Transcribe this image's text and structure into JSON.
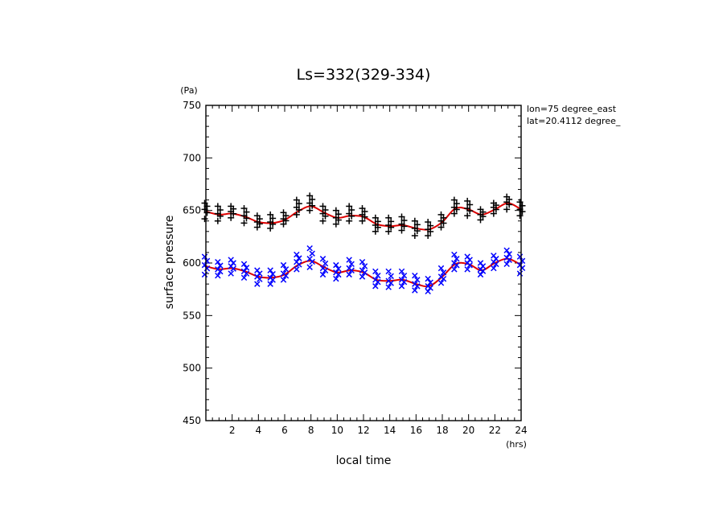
{
  "chart_data": {
    "type": "scatter",
    "title": "Ls=332(329-334)",
    "xlabel": "local time",
    "xunit": "(hrs)",
    "ylabel": "surface pressure",
    "yunit": "(Pa)",
    "xlim": [
      0,
      24
    ],
    "ylim": [
      450,
      750
    ],
    "xticks": [
      2,
      4,
      6,
      8,
      10,
      12,
      14,
      16,
      18,
      20,
      22,
      24
    ],
    "yticks": [
      450,
      500,
      550,
      600,
      650,
      700,
      750
    ],
    "annotations": [
      "lon=75 degree_east",
      "lat=20.4112 degree_"
    ],
    "colors": {
      "upper_markers": "#000000",
      "lower_markers": "#0000ff",
      "fit": "#dd0000",
      "frame": "#000000"
    },
    "series": [
      {
        "marker": "plus",
        "x": [
          0,
          1,
          2,
          3,
          4,
          5,
          6,
          7,
          8,
          9,
          10,
          11,
          12,
          13,
          14,
          15,
          16,
          17,
          18,
          19,
          20,
          21,
          22,
          23,
          24
        ],
        "values": [
          651,
          647,
          649,
          645,
          639,
          639,
          642,
          653,
          657,
          647,
          643,
          647,
          646,
          636,
          636,
          637,
          633,
          632,
          640,
          653,
          652,
          646,
          653,
          658,
          651
        ],
        "spread": [
          [
            642,
            657
          ],
          [
            640,
            654
          ],
          [
            643,
            654
          ],
          [
            638,
            652
          ],
          [
            634,
            645
          ],
          [
            633,
            646
          ],
          [
            637,
            648
          ],
          [
            646,
            660
          ],
          [
            650,
            664
          ],
          [
            640,
            654
          ],
          [
            637,
            650
          ],
          [
            640,
            654
          ],
          [
            640,
            652
          ],
          [
            630,
            643
          ],
          [
            630,
            643
          ],
          [
            631,
            644
          ],
          [
            626,
            640
          ],
          [
            626,
            639
          ],
          [
            634,
            646
          ],
          [
            647,
            660
          ],
          [
            645,
            659
          ],
          [
            641,
            651
          ],
          [
            647,
            657
          ],
          [
            651,
            663
          ],
          [
            645,
            658
          ]
        ]
      },
      {
        "marker": "cross",
        "x": [
          0,
          1,
          2,
          3,
          4,
          5,
          6,
          7,
          8,
          9,
          10,
          11,
          12,
          13,
          14,
          15,
          16,
          17,
          18,
          19,
          20,
          21,
          22,
          23,
          24
        ],
        "values": [
          598,
          594,
          597,
          592,
          587,
          586,
          590,
          601,
          604,
          595,
          591,
          595,
          593,
          584,
          583,
          584,
          580,
          578,
          587,
          600,
          600,
          594,
          601,
          605,
          598
        ],
        "spread": [
          [
            589,
            606
          ],
          [
            588,
            601
          ],
          [
            590,
            603
          ],
          [
            586,
            599
          ],
          [
            580,
            593
          ],
          [
            580,
            593
          ],
          [
            584,
            598
          ],
          [
            594,
            608
          ],
          [
            596,
            614
          ],
          [
            589,
            604
          ],
          [
            585,
            598
          ],
          [
            589,
            603
          ],
          [
            587,
            601
          ],
          [
            578,
            592
          ],
          [
            577,
            592
          ],
          [
            578,
            592
          ],
          [
            574,
            588
          ],
          [
            573,
            585
          ],
          [
            581,
            595
          ],
          [
            594,
            608
          ],
          [
            594,
            606
          ],
          [
            589,
            600
          ],
          [
            595,
            607
          ],
          [
            599,
            612
          ],
          [
            590,
            606
          ]
        ]
      }
    ],
    "fit_lines": [
      {
        "x": [
          0,
          1,
          2,
          3,
          4,
          5,
          6,
          7,
          8,
          9,
          10,
          11,
          12,
          13,
          14,
          15,
          16,
          17,
          18,
          19,
          20,
          21,
          22,
          23,
          24
        ],
        "values": [
          649,
          646,
          647,
          644,
          639,
          638,
          641,
          649,
          654,
          648,
          643,
          645,
          644,
          637,
          635,
          636,
          633,
          632,
          639,
          652,
          651,
          646,
          651,
          657,
          651
        ]
      },
      {
        "x": [
          0,
          1,
          2,
          3,
          4,
          5,
          6,
          7,
          8,
          9,
          10,
          11,
          12,
          13,
          14,
          15,
          16,
          17,
          18,
          19,
          20,
          21,
          22,
          23,
          24
        ],
        "values": [
          597,
          594,
          595,
          592,
          587,
          586,
          589,
          598,
          602,
          596,
          591,
          593,
          591,
          584,
          583,
          584,
          580,
          578,
          587,
          599,
          599,
          593,
          600,
          604,
          598
        ]
      }
    ]
  }
}
